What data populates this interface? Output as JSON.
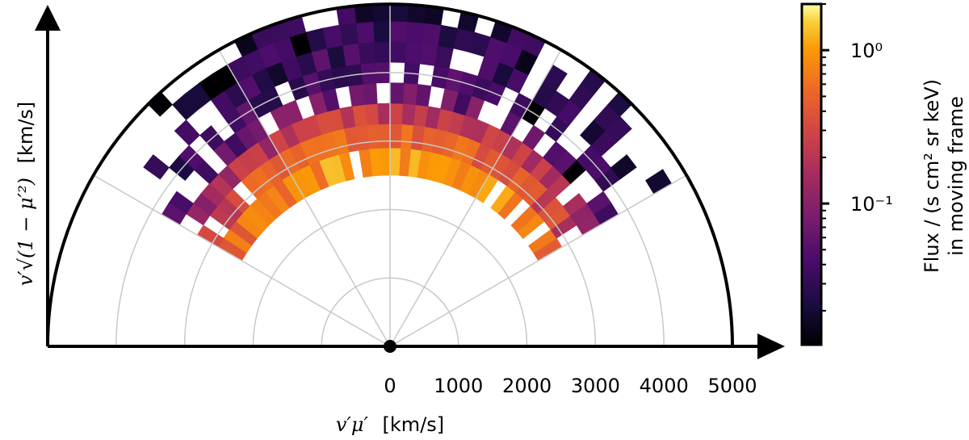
{
  "chart_data": {
    "type": "heatmap",
    "coordinate_system": "polar half-plane (v', pitch angle)",
    "xlabel": {
      "prefix": "v′μ′",
      "unit": "[km/s]"
    },
    "ylabel": {
      "prefix": "v′√(1 − μ′²)",
      "unit": "[km/s]"
    },
    "x_ticks": [
      "0",
      "1000",
      "2000",
      "3000",
      "4000",
      "5000"
    ],
    "x_tick_values": [
      0,
      1000,
      2000,
      3000,
      4000,
      5000
    ],
    "r_max": 5000,
    "grid": true,
    "grid_radii": [
      1000,
      2000,
      3000,
      4000,
      5000
    ],
    "grid_angles_deg": [
      30,
      60,
      90,
      120,
      150
    ],
    "colormap": "inferno",
    "colorbar": {
      "label_line1": "Flux / (s cm² sr keV)",
      "label_line2": "in moving frame",
      "scale": "log",
      "range": [
        0.012,
        2.0
      ],
      "ticks": [
        {
          "value": 1,
          "label": "10⁰"
        },
        {
          "value": 0.1,
          "label": "10⁻¹"
        }
      ]
    },
    "radial_bins_km_s": [
      2500,
      2900,
      3250,
      3550,
      3850,
      4150,
      4450,
      4750,
      5000
    ],
    "angular_bins": 40,
    "populated_angle_range_deg": [
      30,
      150
    ],
    "flux_profile": [
      {
        "r_km_s": 2700,
        "flux": 1.1
      },
      {
        "r_km_s": 3075,
        "flux": 0.55
      },
      {
        "r_km_s": 3400,
        "flux": 0.25
      },
      {
        "r_km_s": 3700,
        "flux": 0.08
      },
      {
        "r_km_s": 4000,
        "flux": 0.05
      },
      {
        "r_km_s": 4300,
        "flux": 0.04
      },
      {
        "r_km_s": 4600,
        "flux": 0.035
      },
      {
        "r_km_s": 4875,
        "flux": 0.03
      }
    ]
  }
}
